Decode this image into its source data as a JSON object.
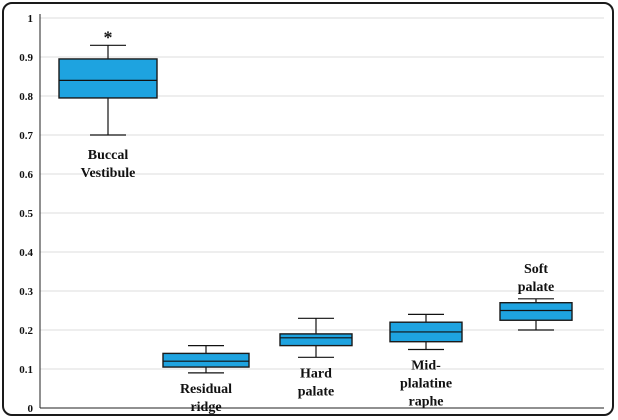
{
  "chart_data": {
    "type": "boxplot",
    "title": "",
    "xlabel": "",
    "ylabel": "",
    "ylim": [
      0,
      1
    ],
    "yticks": [
      "0",
      "0.1",
      "0.2",
      "0.3",
      "0.4",
      "0.5",
      "0.6",
      "0.7",
      "0.8",
      "0.9",
      "1"
    ],
    "grid": true,
    "legend": "none",
    "box_color": "#1ea3e0",
    "box_edge_color": "#1a1a1a",
    "categories": [
      {
        "label_lines": [
          "Buccal",
          "Vestibule"
        ],
        "label_position": "below",
        "annotation": "*",
        "min": 0.7,
        "q1": 0.795,
        "median": 0.84,
        "q3": 0.895,
        "max": 0.93
      },
      {
        "label_lines": [
          "Residual",
          "ridge"
        ],
        "label_position": "below",
        "annotation": "",
        "min": 0.09,
        "q1": 0.105,
        "median": 0.12,
        "q3": 0.14,
        "max": 0.16
      },
      {
        "label_lines": [
          "Hard",
          "palate"
        ],
        "label_position": "below",
        "annotation": "",
        "min": 0.13,
        "q1": 0.16,
        "median": 0.18,
        "q3": 0.19,
        "max": 0.23
      },
      {
        "label_lines": [
          "Mid-",
          "plalatine",
          "raphe"
        ],
        "label_position": "below",
        "annotation": "",
        "min": 0.15,
        "q1": 0.17,
        "median": 0.195,
        "q3": 0.22,
        "max": 0.24
      },
      {
        "label_lines": [
          "Soft",
          "palate"
        ],
        "label_position": "above",
        "annotation": "",
        "min": 0.2,
        "q1": 0.225,
        "median": 0.25,
        "q3": 0.27,
        "max": 0.28
      }
    ]
  }
}
